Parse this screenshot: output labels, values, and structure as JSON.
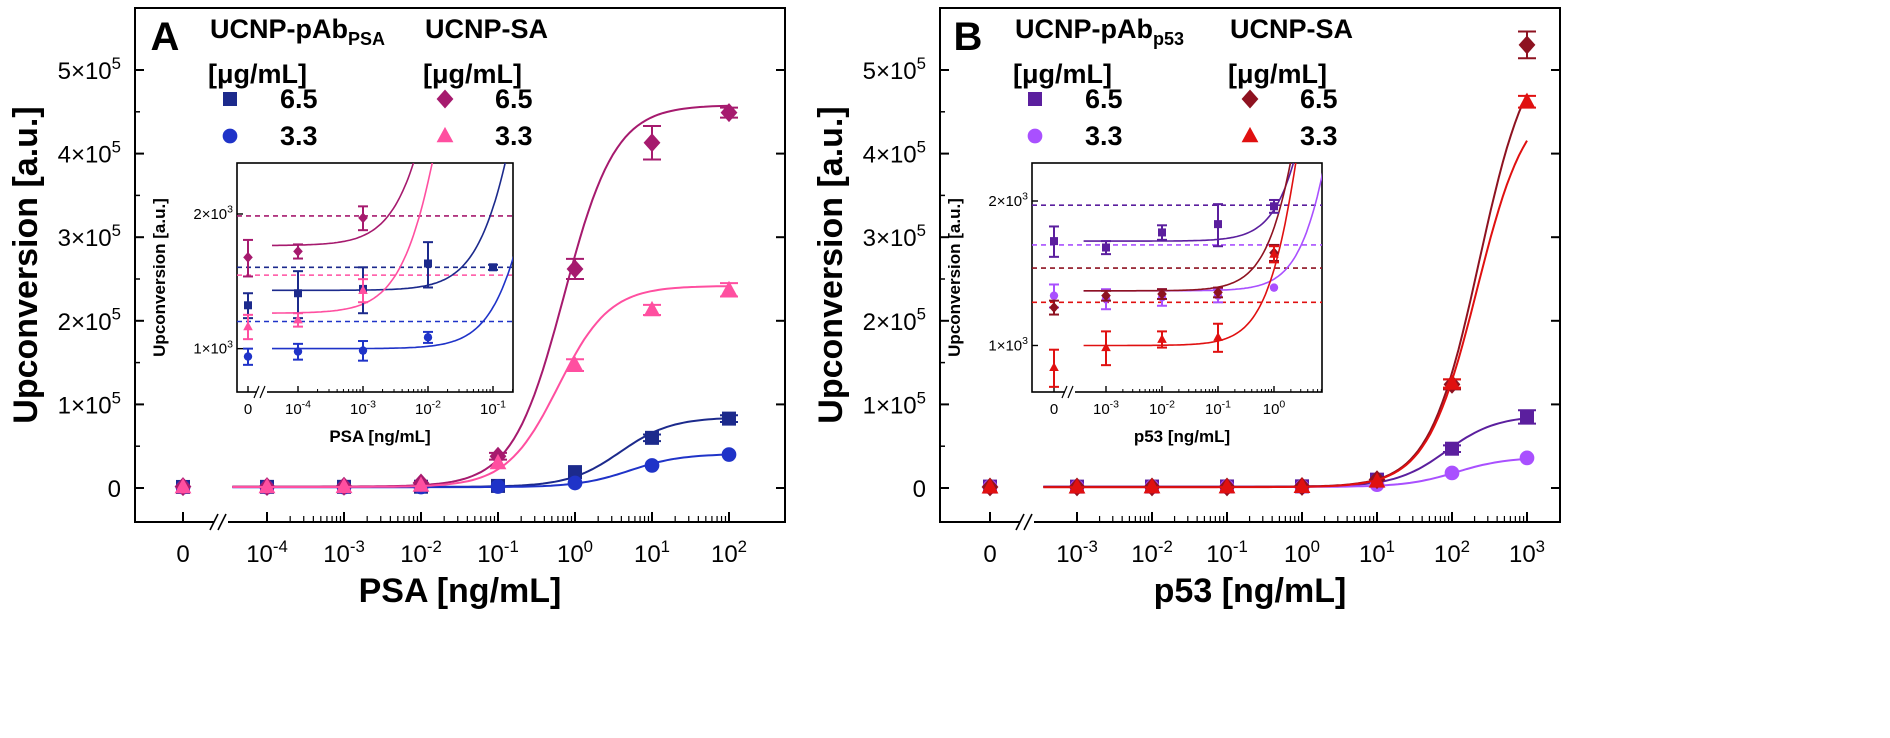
{
  "chart_data": [
    {
      "type": "scatter",
      "panel_label": "A",
      "xlabel": "PSA [ng/mL]",
      "ylabel": "Upconversion [a.u.]",
      "x_scale": "log with broken axis at 0",
      "y_scale": "linear",
      "ylim": [
        -20000,
        560000
      ],
      "x_ticks": [
        "0",
        "10-4",
        "10-3",
        "10-2",
        "10-1",
        "100",
        "101",
        "102"
      ],
      "y_ticks": [
        "0",
        "1×105",
        "2×105",
        "3×105",
        "4×105",
        "5×105"
      ],
      "legend": {
        "groups": [
          {
            "title": "UCNP-pAbPSA",
            "title_sub": "PSA",
            "title_main": "UCNP-pAb",
            "unit": "[μg/mL]"
          },
          {
            "title": "UCNP-SA",
            "title_main": "UCNP-SA",
            "title_sub": "",
            "unit": "[μg/mL]"
          }
        ],
        "placement": "top-left"
      },
      "series": [
        {
          "name": "6.5",
          "group": "UCNP-pAbPSA",
          "marker": "square",
          "color": "#1c2a8c",
          "x": [
            "0",
            0.0001,
            0.001,
            0.01,
            0.1,
            1,
            10,
            100
          ],
          "y": [
            1250,
            1350,
            1400,
            1550,
            2500,
            19000,
            60000,
            83000
          ],
          "err": [
            600,
            600,
            600,
            600,
            800,
            2500,
            4000,
            4000
          ]
        },
        {
          "name": "3.3",
          "group": "UCNP-pAbPSA",
          "marker": "circle",
          "color": "#1f33c8",
          "x": [
            "0",
            0.0001,
            0.001,
            0.01,
            0.1,
            1,
            10,
            100
          ],
          "y": [
            950,
            1000,
            1000,
            1100,
            1800,
            6000,
            27000,
            40000
          ],
          "err": [
            500,
            500,
            500,
            500,
            600,
            1500,
            3000,
            3000
          ]
        },
        {
          "name": "6.5",
          "group": "UCNP-SA",
          "marker": "diamond",
          "color": "#a61a6e",
          "x": [
            "0",
            0.0001,
            0.001,
            0.01,
            0.1,
            1,
            10,
            100
          ],
          "y": [
            1650,
            1700,
            2100,
            6000,
            38000,
            262000,
            413000,
            449000
          ],
          "err": [
            700,
            700,
            800,
            2000,
            4000,
            12000,
            20000,
            6000
          ]
        },
        {
          "name": "3.3",
          "group": "UCNP-SA",
          "marker": "triangle",
          "color": "#ff4fa0",
          "x": [
            "0",
            0.0001,
            0.001,
            0.01,
            0.1,
            1,
            10,
            100
          ],
          "y": [
            1150,
            1200,
            1450,
            3000,
            30000,
            147000,
            213000,
            237000
          ],
          "err": [
            600,
            600,
            600,
            1500,
            3000,
            7000,
            6000,
            8000
          ]
        }
      ],
      "inset": {
        "xlabel": "PSA [ng/mL]",
        "ylabel": "Upconversion [a.u.]",
        "x_ticks": [
          "0",
          "10-4",
          "10-3",
          "10-2",
          "10-1"
        ],
        "y_ticks": [
          "1×103",
          "2×103"
        ],
        "y_scale": "log",
        "ylim": [
          800,
          2600
        ],
        "thresholds": [
          {
            "value": 1980,
            "color": "#a61a6e"
          },
          {
            "value": 1520,
            "color": "#1c2a8c"
          },
          {
            "value": 1460,
            "color": "#ff4fa0"
          },
          {
            "value": 1150,
            "color": "#1f33c8"
          }
        ],
        "series": [
          {
            "name": "UCNP-pAbPSA 6.5",
            "color": "#1c2a8c",
            "marker": "square",
            "x": [
              "0",
              0.0001,
              0.001,
              0.01,
              0.1
            ],
            "y": [
              1250,
              1330,
              1360,
              1550,
              1520
            ],
            "err": [
              80,
              160,
              160,
              180,
              20
            ]
          },
          {
            "name": "UCNP-pAbPSA 3.3",
            "color": "#1f33c8",
            "marker": "circle",
            "x": [
              "0",
              0.0001,
              0.001,
              0.01,
              0.1
            ],
            "y": [
              960,
              985,
              990,
              1060,
              null
            ],
            "err": [
              40,
              40,
              50,
              30,
              0
            ]
          },
          {
            "name": "UCNP-SA 6.5",
            "color": "#a61a6e",
            "marker": "diamond",
            "x": [
              "0",
              0.0001,
              0.001,
              0.01,
              0.1
            ],
            "y": [
              1600,
              1650,
              1960,
              null,
              null
            ],
            "err": [
              150,
              60,
              120,
              0,
              0
            ]
          },
          {
            "name": "UCNP-SA 3.3",
            "color": "#ff4fa0",
            "marker": "triangle",
            "x": [
              "0",
              0.0001,
              0.001,
              0.01,
              0.1
            ],
            "y": [
              1120,
              1160,
              1350,
              null,
              null
            ],
            "err": [
              70,
              40,
              80,
              0,
              0
            ]
          }
        ]
      }
    },
    {
      "type": "scatter",
      "panel_label": "B",
      "xlabel": "p53 [ng/mL]",
      "ylabel": "Upconversion [a.u.]",
      "x_scale": "log with broken axis at 0",
      "y_scale": "linear",
      "ylim": [
        -20000,
        560000
      ],
      "x_ticks": [
        "0",
        "10-3",
        "10-2",
        "10-1",
        "100",
        "101",
        "102",
        "103"
      ],
      "y_ticks": [
        "0",
        "1×105",
        "2×105",
        "3×105",
        "4×105",
        "5×105"
      ],
      "legend": {
        "groups": [
          {
            "title": "UCNP-pAbp53",
            "title_main": "UCNP-pAb",
            "title_sub": "p53",
            "unit": "[μg/mL]"
          },
          {
            "title": "UCNP-SA",
            "title_main": "UCNP-SA",
            "title_sub": "",
            "unit": "[μg/mL]"
          }
        ],
        "placement": "top-left"
      },
      "series": [
        {
          "name": "6.5",
          "group": "UCNP-pAbp53",
          "marker": "square",
          "color": "#5b1f9e",
          "x": [
            "0",
            0.001,
            0.01,
            0.1,
            1,
            10,
            100,
            1000
          ],
          "y": [
            1700,
            1650,
            1750,
            1850,
            2000,
            10000,
            47000,
            85000
          ],
          "err": [
            300,
            300,
            300,
            300,
            400,
            2000,
            4000,
            8000
          ]
        },
        {
          "name": "3.3",
          "group": "UCNP-pAbp53",
          "marker": "circle",
          "color": "#a950ff",
          "x": [
            "0",
            0.001,
            0.01,
            0.1,
            1,
            10,
            100,
            1000
          ],
          "y": [
            1350,
            1300,
            1320,
            1350,
            1380,
            4000,
            18000,
            36000
          ],
          "err": [
            300,
            300,
            300,
            300,
            300,
            1000,
            2000,
            3000
          ]
        },
        {
          "name": "6.5",
          "group": "UCNP-SA",
          "marker": "diamond",
          "color": "#8e1220",
          "x": [
            "0",
            0.001,
            0.01,
            0.1,
            1,
            10,
            100,
            1000
          ],
          "y": [
            1250,
            1300,
            1320,
            1330,
            1900,
            10000,
            124000,
            530000
          ],
          "err": [
            300,
            300,
            300,
            300,
            400,
            2000,
            6000,
            16000
          ]
        },
        {
          "name": "3.3",
          "group": "UCNP-SA",
          "marker": "triangle",
          "color": "#e01010",
          "x": [
            "0",
            0.001,
            0.01,
            0.1,
            1,
            10,
            100,
            1000
          ],
          "y": [
            900,
            1000,
            1050,
            1070,
            1600,
            8000,
            125000,
            462000
          ],
          "err": [
            300,
            300,
            300,
            300,
            300,
            2000,
            5000,
            7000
          ]
        }
      ],
      "inset": {
        "xlabel": "p53 [ng/mL]",
        "ylabel": "Upconversion [a.u.]",
        "x_ticks": [
          "0",
          "10-3",
          "10-2",
          "10-1",
          "100"
        ],
        "y_ticks": [
          "1×103",
          "2×103"
        ],
        "y_scale": "log",
        "ylim": [
          800,
          2400
        ],
        "thresholds": [
          {
            "value": 1960,
            "color": "#5b1f9e"
          },
          {
            "value": 1620,
            "color": "#a950ff"
          },
          {
            "value": 1450,
            "color": "#8e1220"
          },
          {
            "value": 1230,
            "color": "#e01010"
          }
        ],
        "series": [
          {
            "name": "UCNP-pAbp53 6.5",
            "color": "#5b1f9e",
            "marker": "square",
            "x": [
              "0",
              0.001,
              0.01,
              0.1,
              1
            ],
            "y": [
              1650,
              1600,
              1720,
              1790,
              1950
            ],
            "err": [
              120,
              50,
              60,
              180,
              60
            ]
          },
          {
            "name": "UCNP-pAbp53 3.3",
            "color": "#a950ff",
            "marker": "circle",
            "x": [
              "0",
              0.001,
              0.01,
              0.1,
              1
            ],
            "y": [
              1270,
              1250,
              1260,
              1270,
              1320
            ],
            "err": [
              70,
              60,
              50,
              40,
              0
            ]
          },
          {
            "name": "UCNP-SA 6.5",
            "color": "#8e1220",
            "marker": "diamond",
            "x": [
              "0",
              0.001,
              0.01,
              0.1,
              1
            ],
            "y": [
              1200,
              1270,
              1280,
              1290,
              1560
            ],
            "err": [
              40,
              30,
              30,
              30,
              60
            ]
          },
          {
            "name": "UCNP-SA 3.3",
            "color": "#e01010",
            "marker": "triangle",
            "x": [
              "0",
              0.001,
              0.01,
              0.1,
              1
            ],
            "y": [
              900,
              990,
              1030,
              1040,
              1550
            ],
            "err": [
              80,
              80,
              40,
              70,
              60
            ]
          }
        ]
      }
    }
  ]
}
